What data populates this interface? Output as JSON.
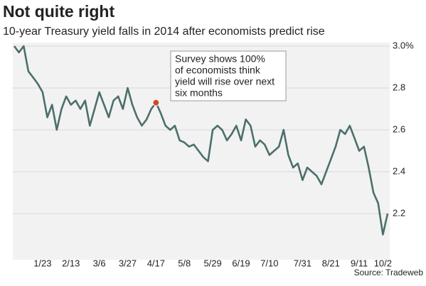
{
  "chart_data": {
    "type": "line",
    "title": "Not quite right",
    "subtitle": "10-year Treasury yield falls in 2014 after economists predict rise",
    "source": "Source: Tradeweb",
    "annotation": [
      "Survey shows 100%",
      "of economists think",
      "yield will rise over next",
      "six months"
    ],
    "categories": [
      null,
      null,
      null,
      null,
      null,
      null,
      "1/23",
      null,
      null,
      null,
      null,
      null,
      "2/13",
      null,
      null,
      null,
      null,
      null,
      "3/6",
      null,
      null,
      null,
      null,
      null,
      "3/27",
      null,
      null,
      null,
      null,
      null,
      "4/17",
      null,
      null,
      null,
      null,
      null,
      "5/8",
      null,
      null,
      null,
      null,
      null,
      "5/29",
      null,
      null,
      null,
      null,
      null,
      "6/19",
      null,
      null,
      null,
      null,
      null,
      "7/10",
      null,
      null,
      null,
      null,
      null,
      null,
      "7/31",
      null,
      null,
      null,
      null,
      null,
      "8/21",
      null,
      null,
      null,
      null,
      null,
      "9/11",
      null,
      null,
      null,
      null,
      "10/2",
      null
    ],
    "series": [
      {
        "color": "#4c6f6c",
        "values": [
          3.0,
          2.97,
          3.0,
          2.88,
          2.85,
          2.82,
          2.78,
          2.66,
          2.72,
          2.6,
          2.7,
          2.76,
          2.72,
          2.74,
          2.7,
          2.74,
          2.62,
          2.7,
          2.78,
          2.72,
          2.66,
          2.74,
          2.76,
          2.7,
          2.8,
          2.72,
          2.66,
          2.62,
          2.65,
          2.7,
          2.73,
          2.68,
          2.62,
          2.6,
          2.62,
          2.55,
          2.54,
          2.52,
          2.53,
          2.5,
          2.47,
          2.45,
          2.6,
          2.62,
          2.6,
          2.55,
          2.58,
          2.62,
          2.55,
          2.65,
          2.62,
          2.52,
          2.55,
          2.53,
          2.48,
          2.5,
          2.52,
          2.6,
          2.48,
          2.42,
          2.44,
          2.36,
          2.42,
          2.4,
          2.38,
          2.34,
          2.4,
          2.46,
          2.52,
          2.6,
          2.58,
          2.62,
          2.56,
          2.5,
          2.52,
          2.42,
          2.3,
          2.25,
          2.1,
          2.2
        ]
      }
    ],
    "ylim": [
      2.0,
      3.0
    ],
    "yticks": [
      {
        "value": 3.0,
        "label": "3.0%"
      },
      2.8,
      2.6,
      2.4,
      2.2
    ],
    "grid": true
  }
}
